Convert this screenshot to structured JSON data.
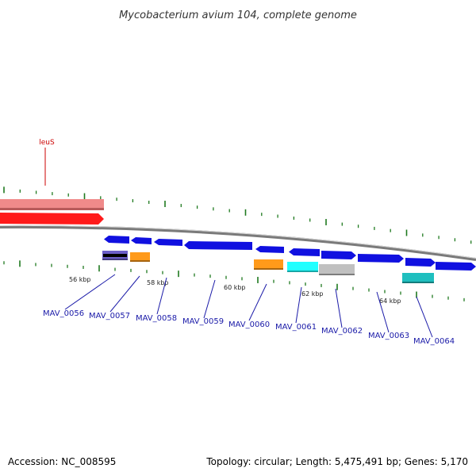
{
  "title": "Mycobacterium avium 104, complete genome",
  "footer": {
    "accession": "Accession: NC_008595",
    "summary": "Topology: circular; Length: 5,475,491 bp; Genes: 5,170"
  },
  "colors": {
    "backbone": "#7a7a7a",
    "tick": "#1f7a1f",
    "gene_blue": "#1010e0",
    "leus_red": "#ff1a1a",
    "leus_pink": "#f08a8a",
    "orange": "#ff9a1a",
    "cyan": "#22ffff",
    "teal": "#1fbfbf",
    "gray_feature": "#c0c0c0",
    "label_blue": "#1a1aa8"
  },
  "genes": [
    {
      "name": "MAV_0056"
    },
    {
      "name": "MAV_0057"
    },
    {
      "name": "MAV_0058"
    },
    {
      "name": "MAV_0059"
    },
    {
      "name": "MAV_0060"
    },
    {
      "name": "MAV_0061"
    },
    {
      "name": "MAV_0062"
    },
    {
      "name": "MAV_0063"
    },
    {
      "name": "MAV_0064"
    }
  ],
  "top_gene": {
    "name": "leuS"
  },
  "scale_labels": [
    "56 kbp",
    "58 kbp",
    "60 kbp",
    "62 kbp",
    "64 kbp"
  ]
}
